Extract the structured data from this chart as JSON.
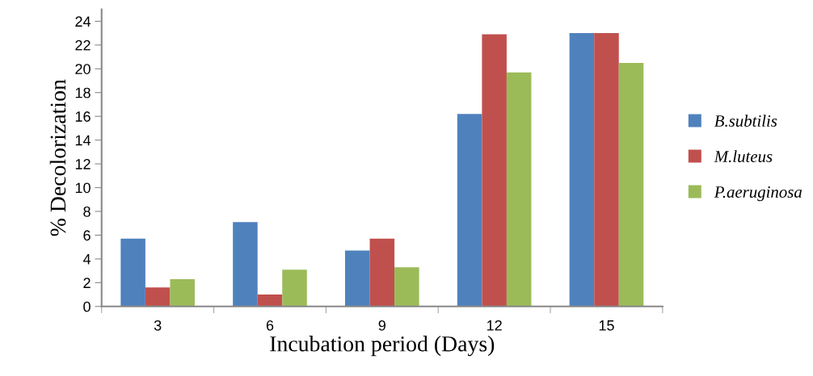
{
  "chart_data": {
    "type": "bar",
    "xlabel": "Incubation period (Days)",
    "ylabel": "% Decolorization",
    "categories": [
      "3",
      "6",
      "9",
      "12",
      "15"
    ],
    "series": [
      {
        "name": "B.subtilis",
        "color": "#4f81bd",
        "values": [
          5.7,
          7.1,
          4.7,
          16.2,
          23.0
        ]
      },
      {
        "name": "M.luteus",
        "color": "#c0504d",
        "values": [
          1.6,
          1.0,
          5.7,
          22.9,
          23.0
        ]
      },
      {
        "name": "P.aeruginosa",
        "color": "#9bbb59",
        "values": [
          2.3,
          3.1,
          3.3,
          19.7,
          20.5
        ]
      }
    ],
    "ylim": [
      0,
      25
    ],
    "yticks": [
      0,
      2,
      4,
      6,
      8,
      10,
      12,
      14,
      16,
      18,
      20,
      22,
      24
    ],
    "grid": false,
    "legend": "right"
  }
}
